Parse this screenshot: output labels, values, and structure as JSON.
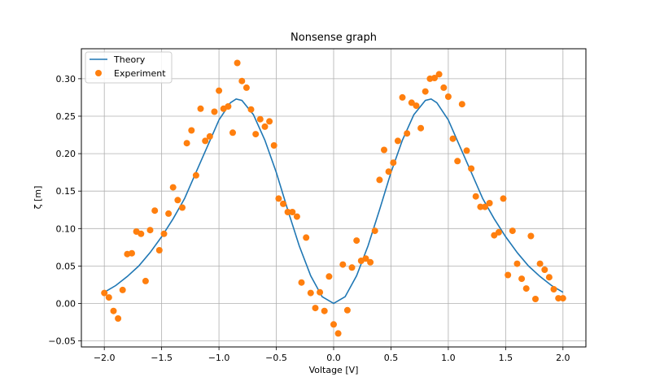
{
  "chart_data": {
    "type": "scatter",
    "title": "Nonsense graph",
    "xlabel": "Voltage [V]",
    "ylabel": "ζ [m]",
    "xlim": [
      -2.2,
      2.2
    ],
    "ylim": [
      -0.058,
      0.34
    ],
    "grid": true,
    "legend_position": "top-left",
    "xticks": [
      -2.0,
      -1.5,
      -1.0,
      -0.5,
      0.0,
      0.5,
      1.0,
      1.5,
      2.0
    ],
    "xtick_labels": [
      "−2.0",
      "−1.5",
      "−1.0",
      "−0.5",
      "0.0",
      "0.5",
      "1.0",
      "1.5",
      "2.0"
    ],
    "yticks": [
      -0.05,
      0.0,
      0.05,
      0.1,
      0.15,
      0.2,
      0.25,
      0.3
    ],
    "ytick_labels": [
      "−0.05",
      "0.00",
      "0.05",
      "0.10",
      "0.15",
      "0.20",
      "0.25",
      "0.30"
    ],
    "series": [
      {
        "name": "Theory",
        "kind": "line",
        "color": "#1f77b4",
        "formula": "0.2*(1 - cos(x*pi/2)) * exp(-(x/2)^2) scaled",
        "x": [
          -2.0,
          -1.9,
          -1.8,
          -1.7,
          -1.6,
          -1.5,
          -1.4,
          -1.3,
          -1.2,
          -1.1,
          -1.0,
          -0.9,
          -0.85,
          -0.8,
          -0.7,
          -0.6,
          -0.5,
          -0.4,
          -0.3,
          -0.2,
          -0.1,
          0.0,
          0.1,
          0.2,
          0.3,
          0.4,
          0.5,
          0.6,
          0.7,
          0.8,
          0.85,
          0.9,
          1.0,
          1.1,
          1.2,
          1.3,
          1.4,
          1.5,
          1.6,
          1.7,
          1.8,
          1.9,
          2.0
        ],
        "y": [
          0.015,
          0.024,
          0.036,
          0.05,
          0.068,
          0.089,
          0.113,
          0.14,
          0.175,
          0.21,
          0.245,
          0.268,
          0.273,
          0.271,
          0.252,
          0.218,
          0.175,
          0.125,
          0.077,
          0.037,
          0.009,
          0.0,
          0.009,
          0.037,
          0.077,
          0.125,
          0.175,
          0.218,
          0.252,
          0.271,
          0.273,
          0.268,
          0.245,
          0.21,
          0.175,
          0.14,
          0.113,
          0.089,
          0.068,
          0.05,
          0.036,
          0.024,
          0.015
        ]
      },
      {
        "name": "Experiment",
        "kind": "scatter",
        "color": "#ff7f0e",
        "x": [
          -2.0,
          -1.96,
          -1.92,
          -1.88,
          -1.84,
          -1.8,
          -1.76,
          -1.72,
          -1.68,
          -1.64,
          -1.6,
          -1.56,
          -1.52,
          -1.48,
          -1.44,
          -1.4,
          -1.36,
          -1.32,
          -1.28,
          -1.24,
          -1.2,
          -1.16,
          -1.12,
          -1.08,
          -1.04,
          -1.0,
          -0.96,
          -0.92,
          -0.88,
          -0.84,
          -0.8,
          -0.76,
          -0.72,
          -0.68,
          -0.64,
          -0.6,
          -0.56,
          -0.52,
          -0.48,
          -0.44,
          -0.4,
          -0.36,
          -0.32,
          -0.28,
          -0.24,
          -0.2,
          -0.16,
          -0.12,
          -0.08,
          -0.04,
          0.0,
          0.04,
          0.08,
          0.12,
          0.16,
          0.2,
          0.24,
          0.28,
          0.32,
          0.36,
          0.4,
          0.44,
          0.48,
          0.52,
          0.56,
          0.6,
          0.64,
          0.68,
          0.72,
          0.76,
          0.8,
          0.84,
          0.88,
          0.92,
          0.96,
          1.0,
          1.04,
          1.08,
          1.12,
          1.16,
          1.2,
          1.24,
          1.28,
          1.32,
          1.36,
          1.4,
          1.44,
          1.48,
          1.52,
          1.56,
          1.6,
          1.64,
          1.68,
          1.72,
          1.76,
          1.8,
          1.84,
          1.88,
          1.92,
          1.96,
          2.0
        ],
        "y": [
          0.014,
          0.008,
          -0.01,
          -0.02,
          0.018,
          0.066,
          0.067,
          0.096,
          0.093,
          0.03,
          0.098,
          0.124,
          0.071,
          0.093,
          0.12,
          0.155,
          0.138,
          0.128,
          0.214,
          0.231,
          0.171,
          0.26,
          0.217,
          0.223,
          0.256,
          0.284,
          0.26,
          0.263,
          0.228,
          0.321,
          0.297,
          0.288,
          0.259,
          0.226,
          0.246,
          0.236,
          0.243,
          0.211,
          0.14,
          0.133,
          0.122,
          0.122,
          0.116,
          0.028,
          0.088,
          0.014,
          -0.006,
          0.015,
          -0.01,
          0.036,
          -0.028,
          -0.04,
          0.052,
          -0.009,
          0.048,
          0.084,
          0.057,
          0.06,
          0.055,
          0.097,
          0.165,
          0.205,
          0.176,
          0.188,
          0.217,
          0.275,
          0.227,
          0.268,
          0.264,
          0.234,
          0.283,
          0.3,
          0.301,
          0.306,
          0.288,
          0.276,
          0.22,
          0.19,
          0.266,
          0.204,
          0.18,
          0.143,
          0.129,
          0.129,
          0.134,
          0.091,
          0.095,
          0.14,
          0.038,
          0.097,
          0.053,
          0.033,
          0.02,
          0.09,
          0.006,
          0.053,
          0.045,
          0.035,
          0.019,
          0.007,
          0.007
        ]
      }
    ]
  }
}
